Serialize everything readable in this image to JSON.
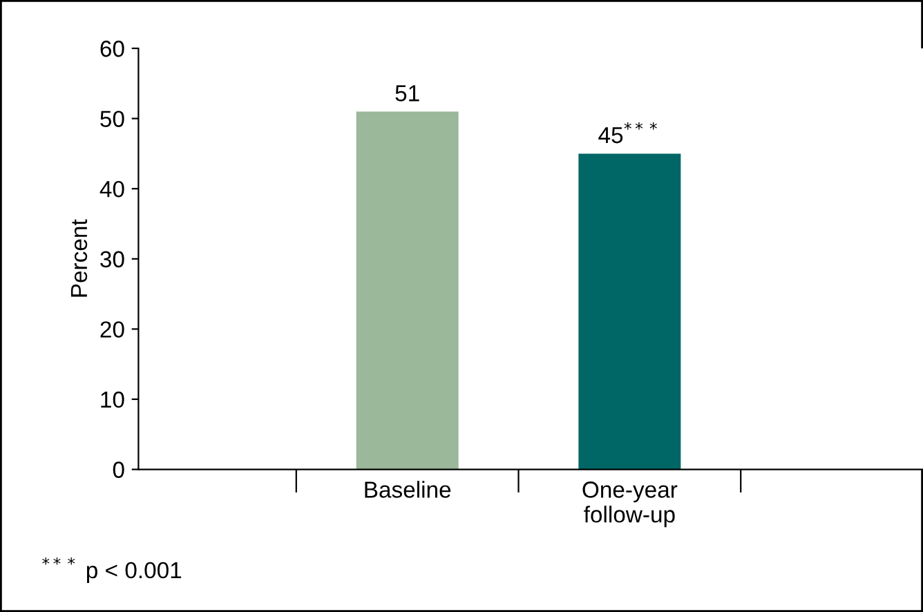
{
  "chart_data": {
    "type": "bar",
    "ylabel": "Percent",
    "categories": [
      null,
      "Baseline",
      "One-year\nfollow-up",
      null
    ],
    "values": [
      null,
      51,
      45,
      null
    ],
    "colors": [
      null,
      "#9bb89a",
      "#006666",
      null
    ],
    "value_labels": [
      null,
      "51",
      "45$^{***}$",
      null
    ],
    "ylim": [
      0,
      60
    ],
    "yticks": [
      0,
      10,
      20,
      30,
      40,
      50,
      60
    ],
    "grid": false,
    "legend": false,
    "annotations": [
      "$^{***}$ p < 0.001"
    ]
  }
}
